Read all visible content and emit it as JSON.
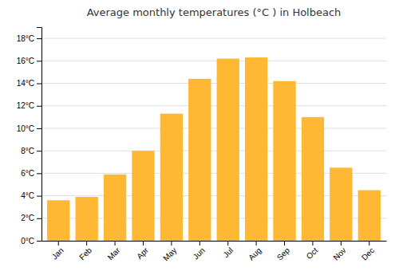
{
  "chart_data": {
    "type": "bar",
    "title": "Average monthly temperatures (°C ) in Holbeach",
    "categories": [
      "Jan",
      "Feb",
      "Mar",
      "Apr",
      "May",
      "Jun",
      "Jul",
      "Aug",
      "Sep",
      "Oct",
      "Nov",
      "Dec"
    ],
    "values": [
      3.6,
      3.9,
      5.9,
      8.0,
      11.3,
      14.4,
      16.2,
      16.3,
      14.2,
      11.0,
      6.5,
      4.5
    ],
    "color": "#FFB833",
    "ylim": [
      0,
      19
    ],
    "yticks": [
      {
        "value": 0,
        "label": "0°C"
      },
      {
        "value": 2,
        "label": "2°C"
      },
      {
        "value": 4,
        "label": "4°C"
      },
      {
        "value": 6,
        "label": "6°C"
      },
      {
        "value": 8,
        "label": "8°C"
      },
      {
        "value": 10,
        "label": "10°C"
      },
      {
        "value": 12,
        "label": "12°C"
      },
      {
        "value": 14,
        "label": "14°C"
      },
      {
        "value": 16,
        "label": "16°C"
      },
      {
        "value": 18,
        "label": "18°C"
      }
    ],
    "grid": true
  }
}
